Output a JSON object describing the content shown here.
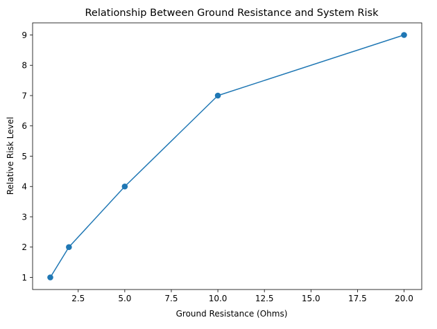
{
  "chart_data": {
    "type": "line",
    "title": "Relationship Between Ground Resistance and System Risk",
    "xlabel": "Ground Resistance (Ohms)",
    "ylabel": "Relative Risk Level",
    "xlim": [
      0.05,
      20.95
    ],
    "ylim": [
      0.6,
      9.4
    ],
    "xticks": [
      2.5,
      5.0,
      7.5,
      10.0,
      12.5,
      15.0,
      17.5,
      20.0
    ],
    "xtick_labels": [
      "2.5",
      "5.0",
      "7.5",
      "10.0",
      "12.5",
      "15.0",
      "17.5",
      "20.0"
    ],
    "yticks": [
      1,
      2,
      3,
      4,
      5,
      6,
      7,
      8,
      9
    ],
    "ytick_labels": [
      "1",
      "2",
      "3",
      "4",
      "5",
      "6",
      "7",
      "8",
      "9"
    ],
    "grid": false,
    "series": [
      {
        "x": [
          1,
          2,
          5,
          10,
          20
        ],
        "y": [
          1,
          2,
          4,
          7,
          9
        ],
        "color": "#1f77b4",
        "marker": "circle"
      }
    ]
  }
}
